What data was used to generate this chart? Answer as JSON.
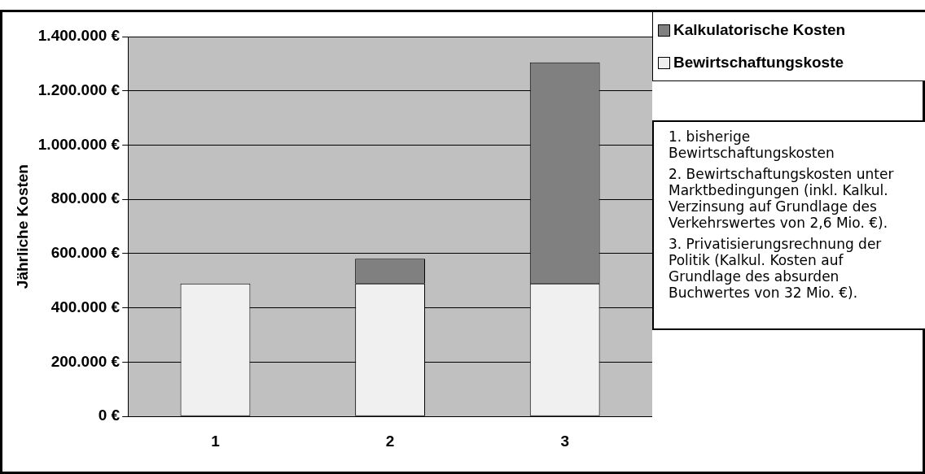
{
  "chart_data": {
    "type": "bar",
    "stacked": true,
    "ylabel": "Jährliche Kosten",
    "categories": [
      "1",
      "2",
      "3"
    ],
    "series": [
      {
        "name": "Bewirtschaftungskoste",
        "color": "#f0f0f0",
        "values": [
          490000,
          490000,
          490000
        ]
      },
      {
        "name": "Kalkulatorische Kosten",
        "color": "#808080",
        "values": [
          null,
          91000,
          815000
        ]
      }
    ],
    "ylim": [
      0,
      1400000
    ],
    "yticks": [
      {
        "value": 0,
        "label": "0 €"
      },
      {
        "value": 200000,
        "label": "200.000 €"
      },
      {
        "value": 400000,
        "label": "400.000 €"
      },
      {
        "value": 600000,
        "label": "600.000 €"
      },
      {
        "value": 800000,
        "label": "800.000 €"
      },
      {
        "value": 1000000,
        "label": "1.000.000 €"
      },
      {
        "value": 1200000,
        "label": "1.200.000 €"
      },
      {
        "value": 1400000,
        "label": "1.400.000 €"
      }
    ],
    "grid": "y",
    "legend": "top right",
    "annotations": [
      "1. bisherige Bewirtschaftungskosten",
      "2. Bewirtschaftungskosten unter Marktbedingungen (inkl. Kalkul. Verzinsung auf Grundlage des Verkehrswertes von 2,6 Mio. €).",
      "3. Privatisierungsrechnung der Politik (Kalkul. Kosten auf Grundlage des absurden Buchwertes von 32 Mio. €)."
    ]
  }
}
